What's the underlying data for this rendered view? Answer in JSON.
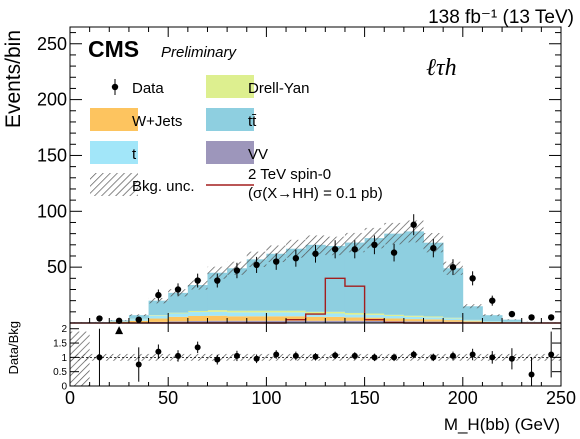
{
  "header": {
    "lumi": "138 fb⁻¹ (13 TeV)",
    "cms": "CMS",
    "preliminary": "Preliminary",
    "channel": "ℓτh"
  },
  "colors": {
    "w_jets": "#fdc45f",
    "drell_yan": "#ddef8f",
    "t": "#a2e6f9",
    "ttbar": "#8ecfe0",
    "vv": "#9d96bb",
    "signal": "#a31e1e",
    "data": "#000000"
  },
  "legend": [
    {
      "key": "data",
      "label": "Data",
      "marker": "point"
    },
    {
      "key": "drell_yan",
      "label": "Drell-Yan",
      "marker": "box"
    },
    {
      "key": "w_jets",
      "label": "W+Jets",
      "marker": "box"
    },
    {
      "key": "ttbar",
      "label": "tt̄",
      "marker": "box"
    },
    {
      "key": "t",
      "label": "t",
      "marker": "box"
    },
    {
      "key": "vv",
      "label": "VV",
      "marker": "box"
    },
    {
      "key": "unc",
      "label": "Bkg. unc.",
      "marker": "hatch"
    },
    {
      "key": "signal",
      "label": "2 TeV spin-0",
      "label2": "(σ(X→HH) = 0.1 pb)",
      "marker": "line"
    }
  ],
  "chart_data": [
    {
      "type": "bar",
      "stacked": true,
      "ylabel": "Events/bin",
      "xlim": [
        0,
        250
      ],
      "ylim": [
        0,
        265
      ],
      "yticks": [
        50,
        100,
        150,
        200,
        250
      ],
      "bin_edges": [
        0,
        10,
        20,
        30,
        40,
        50,
        60,
        70,
        80,
        90,
        100,
        110,
        120,
        130,
        140,
        150,
        160,
        170,
        180,
        190,
        200,
        210,
        220,
        230,
        240,
        250
      ],
      "series": [
        {
          "name": "VV",
          "key": "vv",
          "values": [
            0,
            0,
            0.2,
            0.5,
            1,
            1.5,
            1.8,
            2,
            2,
            2,
            2,
            2,
            2,
            2,
            2,
            1.8,
            1.6,
            1.5,
            1.3,
            1.1,
            0.6,
            0.4,
            0.2,
            0.1,
            0.1
          ]
        },
        {
          "name": "W+Jets",
          "key": "w_jets",
          "values": [
            0.5,
            0.5,
            1,
            1.5,
            3,
            4,
            4.5,
            4.5,
            4,
            4,
            4,
            4,
            3.5,
            3.5,
            3,
            3,
            2.5,
            2,
            2,
            1.5,
            1,
            0.5,
            0.5,
            0.3,
            0.2
          ]
        },
        {
          "name": "t",
          "key": "t",
          "values": [
            0.3,
            0.4,
            0.6,
            1.5,
            2.5,
            3,
            3.5,
            3.5,
            3.5,
            3.5,
            3.5,
            3.5,
            3,
            3,
            2.5,
            2.5,
            2.2,
            2,
            1.8,
            1.5,
            0.8,
            0.5,
            0.3,
            0.2,
            0.1
          ]
        },
        {
          "name": "Drell-Yan",
          "key": "drell_yan",
          "values": [
            0,
            0,
            0,
            0.3,
            0.5,
            0.7,
            1,
            1.5,
            1.5,
            1.5,
            1.5,
            1.5,
            1.5,
            1.5,
            1.5,
            1.2,
            1,
            1,
            0.8,
            0.6,
            0.4,
            0.2,
            0.1,
            0.1,
            0
          ]
        },
        {
          "name": "tt̄",
          "key": "ttbar",
          "values": [
            0,
            0,
            0.5,
            3.2,
            13,
            17.8,
            23.2,
            33.5,
            38,
            46,
            51,
            55.5,
            60,
            59,
            63,
            67.5,
            72.7,
            75.5,
            66,
            44.3,
            12.2,
            5.4,
            1.9,
            0.3,
            0.1
          ]
        }
      ],
      "signal": {
        "name": "2 TeV spin-0",
        "values": [
          0,
          0,
          0,
          0,
          0,
          0,
          0,
          0,
          0,
          0,
          0,
          3,
          8,
          40,
          33,
          3,
          0.5,
          0,
          0,
          0,
          0,
          0,
          0,
          0,
          0
        ]
      },
      "data": {
        "x": [
          5,
          15,
          25,
          35,
          45,
          55,
          65,
          75,
          85,
          95,
          105,
          115,
          125,
          135,
          145,
          155,
          165,
          175,
          185,
          195,
          205,
          215,
          225,
          235,
          245
        ],
        "y": [
          0,
          4,
          2,
          3,
          25,
          30,
          38,
          38,
          47,
          52,
          55,
          58,
          62,
          66,
          66,
          70,
          63,
          88,
          67,
          50,
          40,
          20,
          8,
          5,
          5
        ],
        "yerr": [
          0,
          2,
          1.5,
          2,
          5,
          5.5,
          6.2,
          6.2,
          6.9,
          7.2,
          7.4,
          7.6,
          7.9,
          8.1,
          8.1,
          8.4,
          7.9,
          9.4,
          8.2,
          7.1,
          6.3,
          4.5,
          2.8,
          2.2,
          2.2
        ]
      },
      "band_rel_unc": 0.12
    },
    {
      "type": "scatter",
      "ylabel": "Data/Bkg",
      "xlabel": "M_H(bb) (GeV)",
      "xlim": [
        0,
        250
      ],
      "ylim": [
        0,
        2.2
      ],
      "yticks": [
        0,
        0.5,
        1,
        1.5,
        2
      ],
      "xticks": [
        0,
        50,
        100,
        150,
        200,
        250
      ],
      "x": [
        15,
        35,
        45,
        55,
        65,
        75,
        85,
        95,
        105,
        115,
        125,
        135,
        145,
        155,
        165,
        175,
        185,
        195,
        205,
        215,
        225,
        235,
        245
      ],
      "y": [
        1.0,
        0.75,
        1.2,
        1.05,
        1.35,
        0.92,
        1.05,
        0.95,
        1.1,
        1.05,
        1.02,
        1.07,
        1.05,
        1.0,
        1.0,
        1.1,
        1.0,
        1.05,
        1.1,
        1.0,
        0.95,
        0.4,
        1.1
      ],
      "yerr": [
        1.0,
        0.6,
        0.25,
        0.2,
        0.2,
        0.17,
        0.18,
        0.15,
        0.15,
        0.15,
        0.13,
        0.13,
        0.13,
        0.13,
        0.13,
        0.13,
        0.13,
        0.15,
        0.2,
        0.22,
        0.37,
        0.6,
        0.8
      ],
      "arrow_up_x": [
        25
      ],
      "band_rel_unc": 0.12
    }
  ]
}
